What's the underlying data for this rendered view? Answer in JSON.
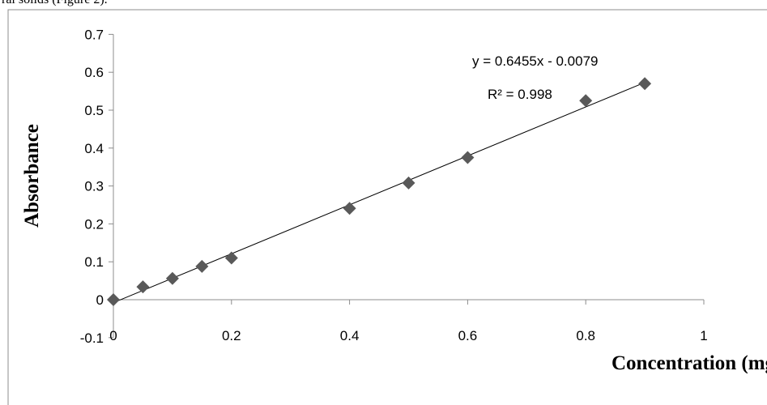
{
  "caption_fragment": "ral solids (Figure 2).",
  "chart_data": {
    "type": "scatter",
    "xlabel": "Concentration (mg/ml)",
    "ylabel": "Absorbance",
    "xlim": [
      0,
      1
    ],
    "ylim": [
      -0.1,
      0.7
    ],
    "x_ticks": [
      "0",
      "0.2",
      "0.4",
      "0.6",
      "0.8",
      "1"
    ],
    "y_ticks": [
      "-0.1",
      "0",
      "0.1",
      "0.2",
      "0.3",
      "0.4",
      "0.5",
      "0.6",
      "0.7"
    ],
    "points": [
      {
        "x": 0,
        "y": 0.0
      },
      {
        "x": 0.05,
        "y": 0.034
      },
      {
        "x": 0.1,
        "y": 0.056
      },
      {
        "x": 0.15,
        "y": 0.088
      },
      {
        "x": 0.2,
        "y": 0.11
      },
      {
        "x": 0.4,
        "y": 0.241
      },
      {
        "x": 0.5,
        "y": 0.308
      },
      {
        "x": 0.6,
        "y": 0.375
      },
      {
        "x": 0.8,
        "y": 0.525
      },
      {
        "x": 0.9,
        "y": 0.57
      }
    ],
    "trendline": {
      "slope": 0.6455,
      "intercept": -0.0079,
      "x_range": [
        0,
        0.9
      ]
    },
    "equation_label": "y = 0.6455x - 0.0079",
    "r2_label": "R² = 0.998",
    "marker_color": "#595959",
    "line_color": "#000000",
    "legend": "none",
    "grid": false
  }
}
